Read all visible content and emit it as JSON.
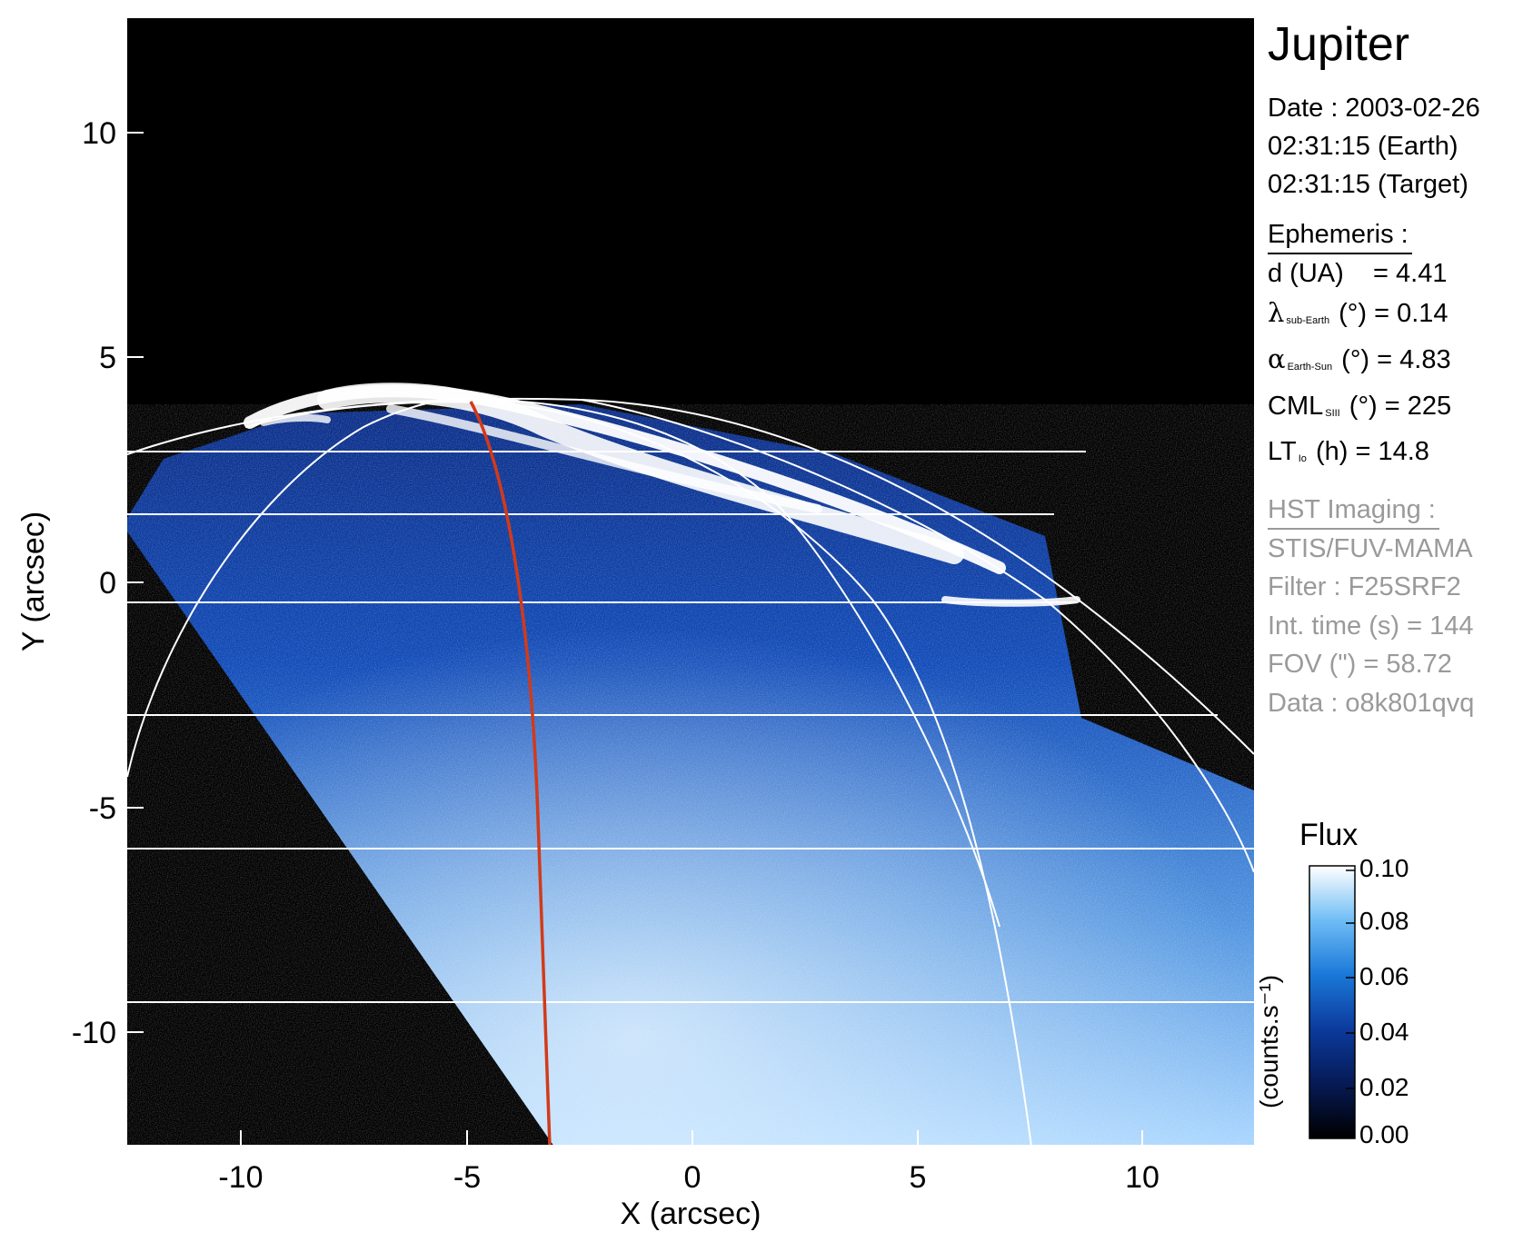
{
  "image": {
    "description_icon": "jupiter-auroral-uv-image",
    "background_color": "#000000",
    "disk_color_dim": "#0a2a8a",
    "disk_color_bright": "#9fd3ff",
    "aurora_color": "#ffffff",
    "grid_color": "#ffffff",
    "meridian_color": "#d23a1a"
  },
  "axes": {
    "x_label": "X (arcsec)",
    "y_label": "Y (arcsec)",
    "x_ticks": [
      "-10",
      "-5",
      "0",
      "5",
      "10"
    ],
    "y_ticks": [
      "10",
      "5",
      "0",
      "-5",
      "-10"
    ]
  },
  "panel": {
    "planet": "Jupiter",
    "date_line": "Date : 2003-02-26",
    "earth_time": "02:31:15 (Earth)",
    "target_time": "02:31:15 (Target)",
    "ephemeris_title": "Ephemeris :",
    "d_line": "d (UA)    = 4.41",
    "lambda_sym": "λ",
    "lambda_sub": "sub-Earth",
    "lambda_rest": " (°) = 0.14",
    "alpha_sym": "α",
    "alpha_sub": "Earth-Sun",
    "alpha_rest": " (°) = 4.83",
    "cml_main": "CML",
    "cml_sub": "SIII",
    "cml_rest": " (°) = 225",
    "lt_main": "LT",
    "lt_sub": "Io",
    "lt_rest": " (h) = 14.8",
    "hst_title": "HST Imaging :",
    "instrument": "STIS/FUV-MAMA",
    "filter": "Filter : F25SRF2",
    "int_time": "Int. time (s) = 144",
    "fov": "FOV (\") = 58.72",
    "data_id": "Data : o8k801qvq"
  },
  "colorbar": {
    "title": "Flux",
    "units": "(counts.s⁻¹)",
    "ticks": [
      "0.10",
      "0.08",
      "0.06",
      "0.04",
      "0.02",
      "0.00"
    ]
  }
}
